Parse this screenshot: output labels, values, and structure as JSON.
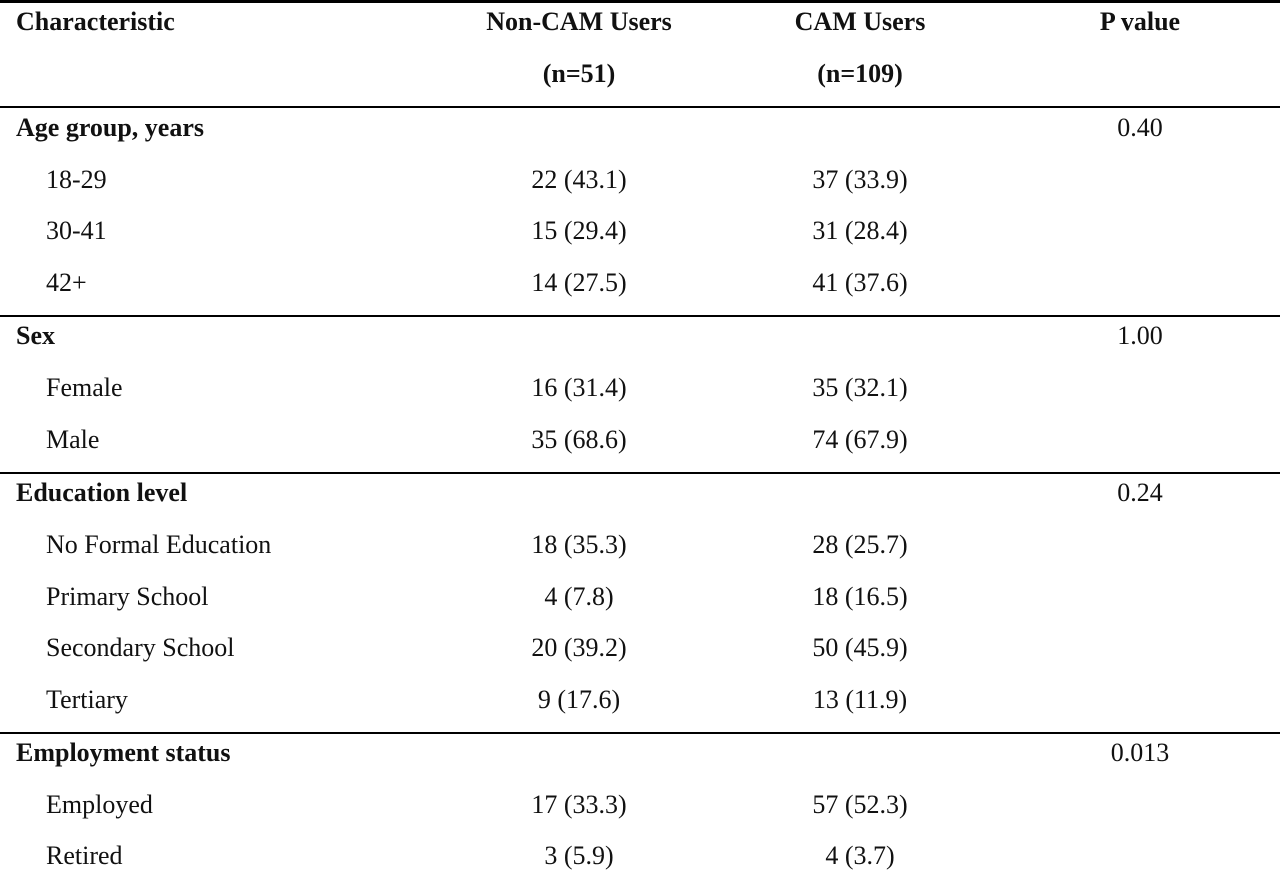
{
  "header": {
    "characteristic": "Characteristic",
    "non_cam": "Non-CAM Users",
    "non_cam_n": "(n=51)",
    "cam": "CAM Users",
    "cam_n": "(n=109)",
    "p_value": "P value"
  },
  "sections": [
    {
      "title": "Age group, years",
      "p": "0.40",
      "rows": [
        {
          "label": "18-29",
          "non_cam": "22 (43.1)",
          "cam": "37 (33.9)"
        },
        {
          "label": "30-41",
          "non_cam": "15 (29.4)",
          "cam": "31 (28.4)"
        },
        {
          "label": "42+",
          "non_cam": "14 (27.5)",
          "cam": "41 (37.6)"
        }
      ]
    },
    {
      "title": "Sex",
      "p": "1.00",
      "rows": [
        {
          "label": "Female",
          "non_cam": "16 (31.4)",
          "cam": "35 (32.1)"
        },
        {
          "label": "Male",
          "non_cam": "35 (68.6)",
          "cam": "74 (67.9)"
        }
      ]
    },
    {
      "title": "Education level",
      "p": "0.24",
      "rows": [
        {
          "label": "No Formal Education",
          "non_cam": "18 (35.3)",
          "cam": "28 (25.7)"
        },
        {
          "label": "Primary School",
          "non_cam": "4 (7.8)",
          "cam": "18 (16.5)"
        },
        {
          "label": "Secondary School",
          "non_cam": "20 (39.2)",
          "cam": "50 (45.9)"
        },
        {
          "label": "Tertiary",
          "non_cam": "9 (17.6)",
          "cam": "13 (11.9)"
        }
      ]
    },
    {
      "title": "Employment status",
      "p": "0.013",
      "rows": [
        {
          "label": "Employed",
          "non_cam": "17 (33.3)",
          "cam": "57 (52.3)"
        },
        {
          "label": "Retired",
          "non_cam": "3 (5.9)",
          "cam": "4 (3.7)"
        }
      ]
    }
  ]
}
